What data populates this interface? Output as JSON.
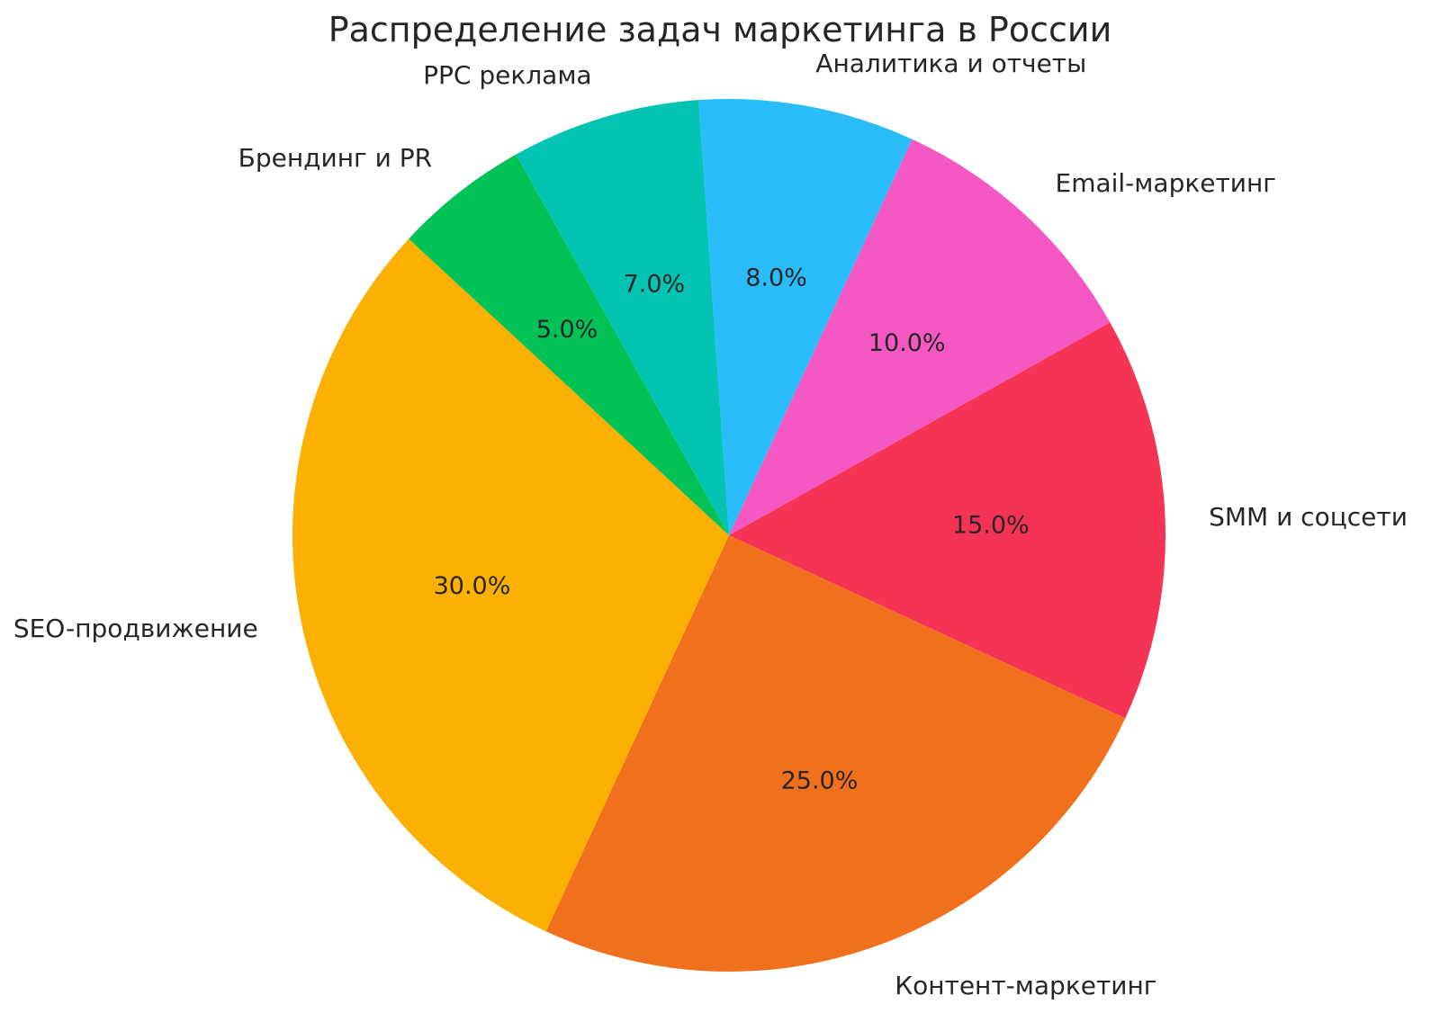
{
  "chart_data": {
    "type": "pie",
    "title": "Распределение задач маркетинга в России",
    "categories": [
      "Аналитика и отчеты",
      "Email-маркетинг",
      "SMM и соцсети",
      "Контент-маркетинг",
      "SEO-продвижение",
      "Брендинг и PR",
      "PPC реклама"
    ],
    "values": [
      8.0,
      10.0,
      15.0,
      25.0,
      30.0,
      5.0,
      7.0
    ],
    "pct_labels": [
      "8.0%",
      "10.0%",
      "15.0%",
      "25.0%",
      "30.0%",
      "5.0%",
      "7.0%"
    ],
    "colors": [
      "#2abcfb",
      "#f558c2",
      "#f43355",
      "#f1701e",
      "#fcb001",
      "#02c155",
      "#03c4b3"
    ],
    "start_angle_deg": 94,
    "direction": "clockwise",
    "pct_distance": 0.6,
    "label_distance": 1.1,
    "legend_position": "none",
    "grid": false,
    "text_color": "#262626",
    "background_color": "#ffffff"
  }
}
